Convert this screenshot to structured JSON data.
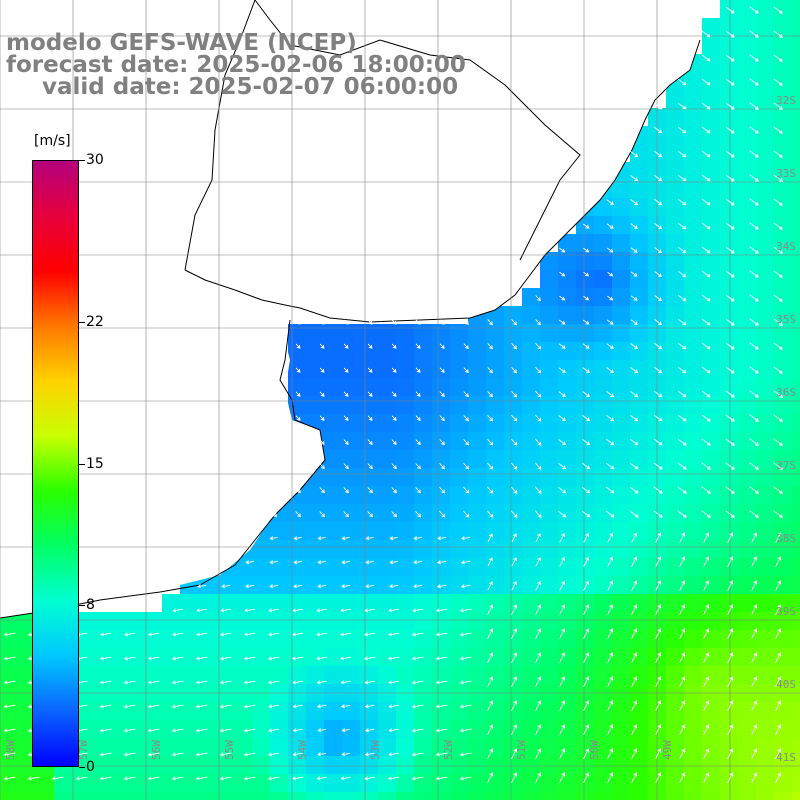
{
  "title": {
    "model": "modelo GEFS-WAVE (NCEP)",
    "forecast": "forecast date: 2025-02-06 18:00:00",
    "valid": "valid date: 2025-02-07 06:00:00"
  },
  "colorbar": {
    "units": "[m/s]",
    "min": 0,
    "max": 30,
    "ticks": [
      "0",
      "8",
      "15",
      "22",
      "30"
    ],
    "tick_values": [
      0,
      8,
      15,
      22,
      30
    ],
    "colors": [
      "#0000ff",
      "#0a64ff",
      "#00c8ff",
      "#00ffd2",
      "#00ff64",
      "#2aff00",
      "#c8ff00",
      "#ffd200",
      "#ff7800",
      "#ff0000",
      "#e6003c",
      "#b4007e"
    ]
  },
  "map": {
    "lat_labels": [
      "32S",
      "33S",
      "34S",
      "35S",
      "36S",
      "37S",
      "38S",
      "39S",
      "40S",
      "41S"
    ],
    "lon_labels": [
      "58W",
      "57W",
      "56W",
      "55W",
      "54W",
      "53W",
      "52W",
      "51W",
      "50W",
      "49W"
    ],
    "land_color": "#ffffff",
    "grid_color": "#808080"
  }
}
